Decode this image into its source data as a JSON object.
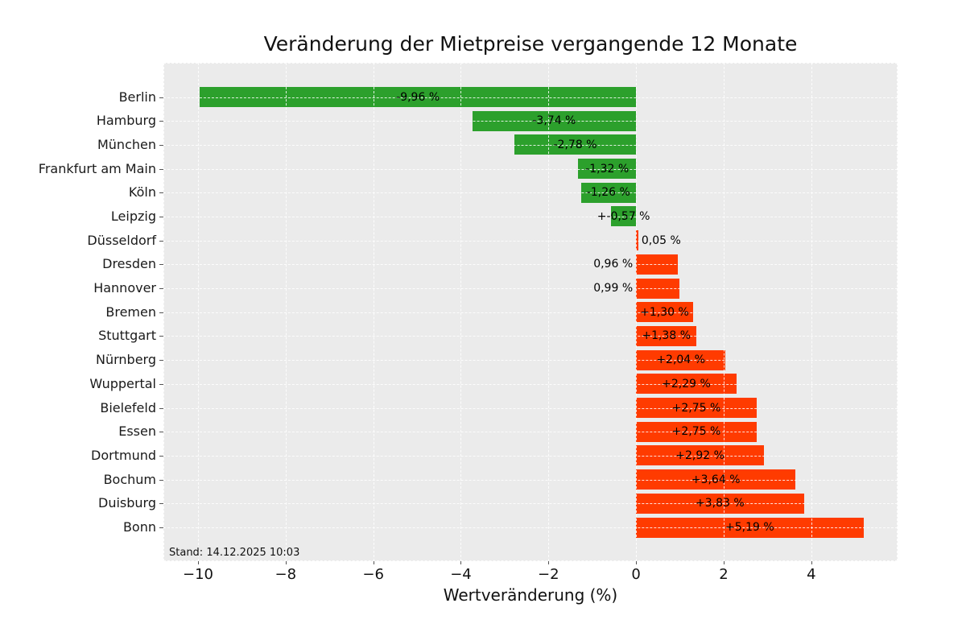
{
  "title": "Veränderung der Mietpreise vergangende 12 Monate",
  "footnote": "Stand: 14.12.2025 10:03",
  "colors": {
    "plot_background": "#ebebeb",
    "grid": "#ffffff",
    "bar_negative": "#2ca02c",
    "bar_positive": "#ff3b00",
    "text": "#000000",
    "tick": "#555555"
  },
  "chart_data": {
    "type": "bar",
    "orientation": "horizontal",
    "title": "Veränderung der Mietpreise vergangende 12 Monate",
    "xlabel": "Wertveränderung (%)",
    "ylabel": "",
    "grid": true,
    "legend": false,
    "xlim": [
      -10.79,
      5.97
    ],
    "xtick_values": [
      -10,
      -8,
      -6,
      -4,
      -2,
      0,
      2,
      4
    ],
    "xtick_labels": [
      "−10",
      "−8",
      "−6",
      "−4",
      "−2",
      "0",
      "2",
      "4"
    ],
    "categories": [
      "Berlin",
      "Hamburg",
      "München",
      "Frankfurt am Main",
      "Köln",
      "Leipzig",
      "Düsseldorf",
      "Dresden",
      "Hannover",
      "Bremen",
      "Stuttgart",
      "Nürnberg",
      "Wuppertal",
      "Bielefeld",
      "Essen",
      "Dortmund",
      "Bochum",
      "Duisburg",
      "Bonn"
    ],
    "values": [
      -9.96,
      -3.74,
      -2.78,
      -1.32,
      -1.26,
      -0.57,
      0.05,
      0.96,
      0.99,
      1.3,
      1.38,
      2.04,
      2.29,
      2.75,
      2.75,
      2.92,
      3.64,
      3.83,
      5.19
    ],
    "value_labels": [
      "-9,96 %",
      "-3,74 %",
      "-2,78 %",
      "-1,32 %",
      "-1,26 %",
      "+-0,57 %",
      "0,05 %",
      "0,96 %",
      "0,99 %",
      "+1,30 %",
      "+1,38 %",
      "+2,04 %",
      "+2,29 %",
      "+2,75 %",
      "+2,75 %",
      "+2,92 %",
      "+3,64 %",
      "+3,83 %",
      "+5,19 %"
    ],
    "value_label_positions": [
      "center",
      "center",
      "center",
      "center",
      "center",
      "center",
      "outside-right",
      "outside-left",
      "outside-left",
      "center",
      "center",
      "center",
      "center",
      "center",
      "center",
      "center",
      "center",
      "center",
      "center"
    ]
  }
}
